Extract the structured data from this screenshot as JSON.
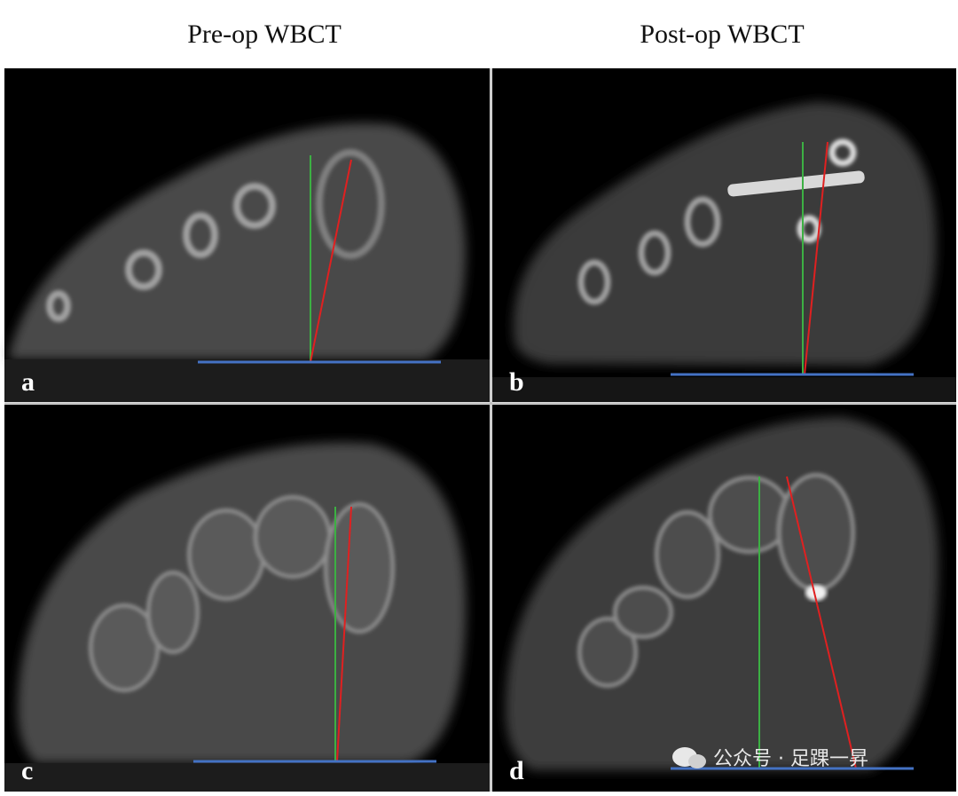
{
  "header": {
    "columns": [
      "Pre-op WBCT",
      "Post-op WBCT"
    ]
  },
  "panels": [
    {
      "label": "a"
    },
    {
      "label": "b"
    },
    {
      "label": "c"
    },
    {
      "label": "d"
    }
  ],
  "watermark": "公众号 · 足踝一昇"
}
